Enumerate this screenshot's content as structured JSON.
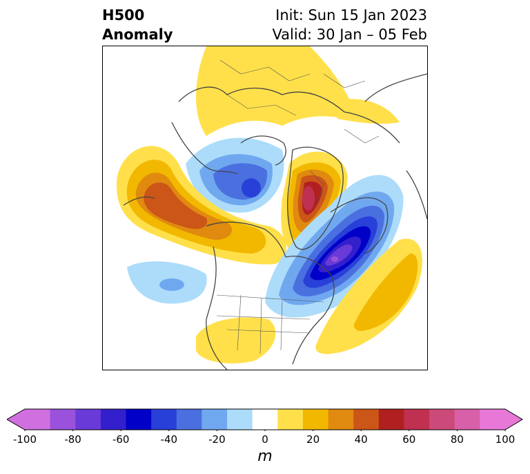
{
  "title": {
    "left_line1": "H500",
    "left_line2": "Anomaly",
    "init": "Init: Sun 15 Jan 2023",
    "valid": "Valid: 30 Jan – 05 Feb"
  },
  "colorbar": {
    "unit": "m",
    "ticks": [
      "-100",
      "-80",
      "-60",
      "-40",
      "-20",
      "0",
      "20",
      "40",
      "60",
      "80",
      "100"
    ],
    "levels": [
      -100,
      -90,
      -80,
      -70,
      -60,
      -50,
      -40,
      -30,
      -20,
      -10,
      10,
      20,
      30,
      40,
      50,
      60,
      70,
      80,
      90,
      100
    ],
    "colors": [
      "#d070e0",
      "#9a52dc",
      "#6a3ad8",
      "#3320cc",
      "#0000c8",
      "#2840d8",
      "#4a70e0",
      "#70a8f0",
      "#acdcfa",
      "#ffffff",
      "#ffe04a",
      "#f2b800",
      "#e08a10",
      "#cc5518",
      "#b02020",
      "#c03050",
      "#cc4a7a",
      "#d860a8",
      "#e878d8"
    ],
    "extend_low_color": "#d070e0",
    "extend_high_color": "#e878d8"
  },
  "map": {
    "region": "North America / Arctic",
    "anomaly_features": [
      {
        "name": "positive-anomaly-nw-pacific",
        "peak": 50
      },
      {
        "name": "positive-anomaly-greenland",
        "peak": 70
      },
      {
        "name": "negative-anomaly-eastern-canada",
        "peak": -90
      },
      {
        "name": "negative-anomaly-polar",
        "peak": -60
      },
      {
        "name": "positive-anomaly-western-atlantic",
        "peak": 30
      },
      {
        "name": "positive-anomaly-southwest-us",
        "peak": 10
      },
      {
        "name": "positive-anomaly-siberia",
        "peak": 10
      },
      {
        "name": "negative-anomaly-east-pacific",
        "peak": -30
      }
    ]
  }
}
